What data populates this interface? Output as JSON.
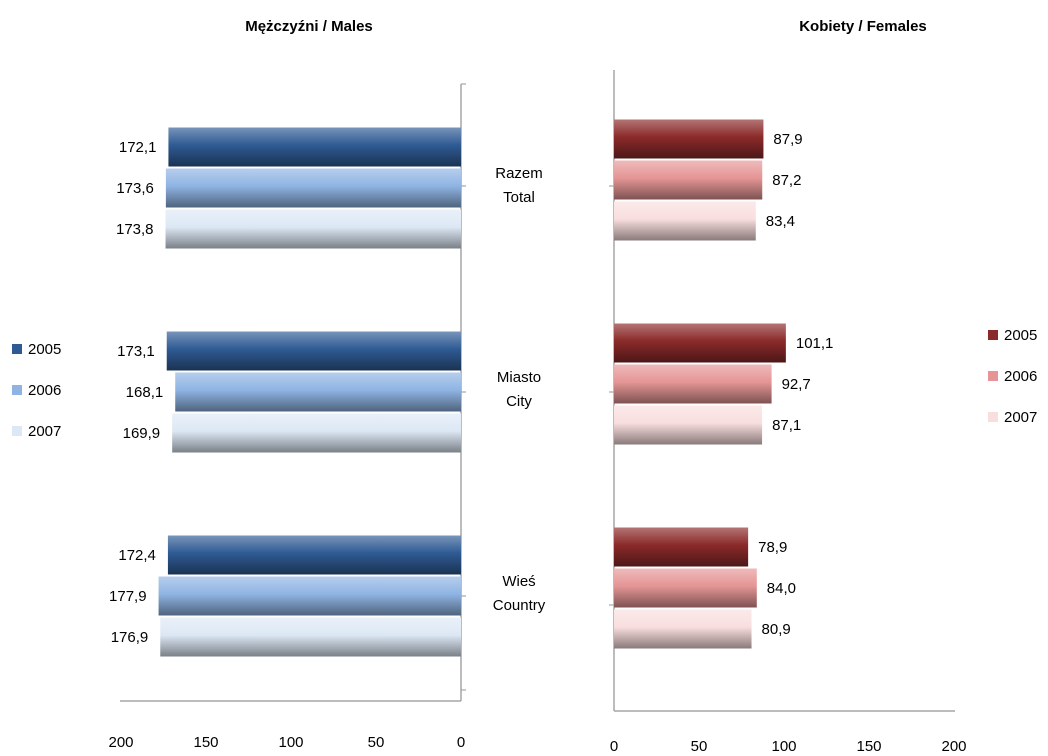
{
  "chart_data": [
    {
      "type": "bar",
      "orientation": "horizontal",
      "direction": "reversed",
      "title": "Mężczyźni / Males",
      "categories": [
        [
          "Razem",
          "Total"
        ],
        [
          "Miasto",
          "City"
        ],
        [
          "Wieś",
          "Country"
        ]
      ],
      "xlim": [
        0,
        200
      ],
      "ticks": [
        "200",
        "150",
        "100",
        "50",
        "0"
      ],
      "tick_values": [
        200,
        150,
        100,
        50,
        0
      ],
      "legend_position": "left",
      "series": [
        {
          "name": "2005",
          "values": [
            172.1,
            173.1,
            172.4
          ],
          "labels": [
            "172,1",
            "173,1",
            "172,4"
          ],
          "color": "#2f5b94"
        },
        {
          "name": "2006",
          "values": [
            173.6,
            168.1,
            177.9
          ],
          "labels": [
            "173,6",
            "168,1",
            "177,9"
          ],
          "color": "#8fb4e3"
        },
        {
          "name": "2007",
          "values": [
            173.8,
            169.9,
            176.9
          ],
          "labels": [
            "173,8",
            "169,9",
            "176,9"
          ],
          "color": "#dde8f5"
        }
      ]
    },
    {
      "type": "bar",
      "orientation": "horizontal",
      "title": "Kobiety / Females",
      "categories": [
        [
          "Razem",
          "Total"
        ],
        [
          "Miasto",
          "City"
        ],
        [
          "Wieś",
          "Country"
        ]
      ],
      "xlim": [
        0,
        200
      ],
      "ticks": [
        "0",
        "50",
        "100",
        "150",
        "200"
      ],
      "tick_values": [
        0,
        50,
        100,
        150,
        200
      ],
      "legend_position": "right",
      "series": [
        {
          "name": "2005",
          "values": [
            87.9,
            101.1,
            78.9
          ],
          "labels": [
            "87,9",
            "101,1",
            "78,9"
          ],
          "color": "#8b2a2a"
        },
        {
          "name": "2006",
          "values": [
            87.2,
            92.7,
            84.0
          ],
          "labels": [
            "87,2",
            "92,7",
            "84,0"
          ],
          "color": "#e59595"
        },
        {
          "name": "2007",
          "values": [
            83.4,
            87.1,
            80.9
          ],
          "labels": [
            "83,4",
            "87,1",
            "80,9"
          ],
          "color": "#f9dede"
        }
      ]
    }
  ]
}
